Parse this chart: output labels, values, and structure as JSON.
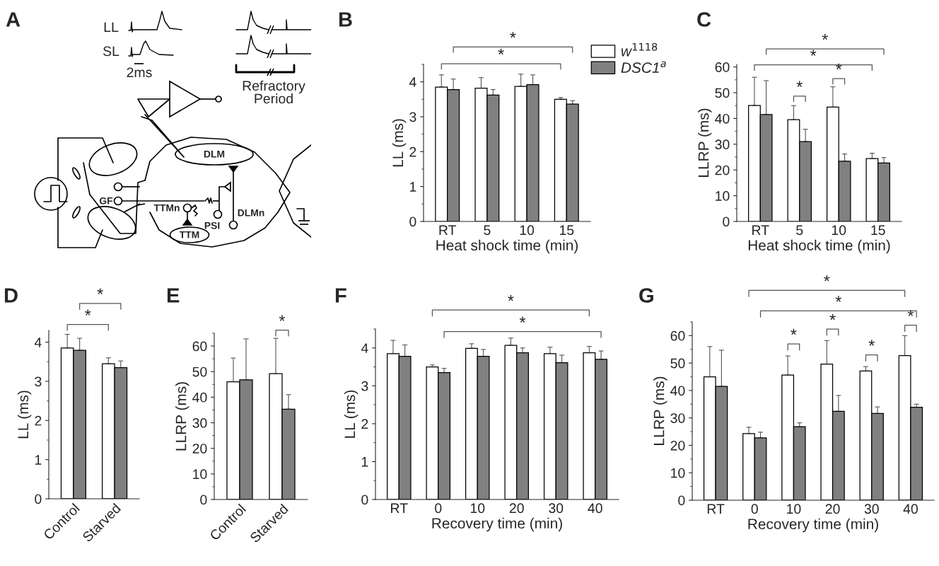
{
  "chart_data": [
    {
      "type": "other",
      "title": "A",
      "annotations": [
        "LL",
        "SL",
        "2ms",
        "Refractory Period",
        "DLM",
        "GF",
        "TTMn",
        "PSI",
        "DLMn",
        "TTM"
      ]
    },
    {
      "type": "bar",
      "title": "B",
      "xlabel": "Heat shock time (min)",
      "ylabel": "LL (ms)",
      "categories": [
        "RT",
        "5",
        "10",
        "15"
      ],
      "ylim": [
        0,
        4.5
      ],
      "yticks": [
        0,
        1,
        2,
        3,
        4
      ],
      "legend": "top right",
      "annotations": [
        "*",
        "*"
      ],
      "series": [
        {
          "name": "w$^{1118}$",
          "color": "#ffffff",
          "values": [
            3.85,
            3.82,
            3.87,
            3.5
          ],
          "errors": [
            [
              3.85,
              4.2
            ],
            [
              3.82,
              4.12
            ],
            [
              3.87,
              4.22
            ],
            [
              3.5,
              3.55
            ]
          ]
        },
        {
          "name": "DSC1$^{a}$",
          "color": "#808080",
          "values": [
            3.78,
            3.62,
            3.92,
            3.36
          ],
          "errors": [
            [
              3.78,
              4.08
            ],
            [
              3.62,
              3.78
            ],
            [
              3.92,
              4.2
            ],
            [
              3.36,
              3.46
            ]
          ]
        }
      ]
    },
    {
      "type": "bar",
      "title": "C",
      "xlabel": "Heat shock time (min)",
      "ylabel": "LLRP (ms)",
      "categories": [
        "RT",
        "5",
        "10",
        "15"
      ],
      "ylim": [
        0,
        61
      ],
      "yticks": [
        0,
        10,
        20,
        30,
        40,
        50,
        60
      ],
      "annotations": [
        "*",
        "*",
        "*",
        "*"
      ],
      "series": [
        {
          "color": "#ffffff",
          "values": [
            45,
            39.5,
            44.4,
            24.4
          ],
          "errors": [
            [
              45,
              56
            ],
            [
              39.5,
              45
            ],
            [
              44.4,
              52.3
            ],
            [
              24.4,
              26.5
            ]
          ]
        },
        {
          "color": "#808080",
          "values": [
            41.5,
            31,
            23.4,
            22.7
          ],
          "errors": [
            [
              41.5,
              54.7
            ],
            [
              31,
              35.8
            ],
            [
              23.4,
              26.2
            ],
            [
              22.7,
              24.8
            ]
          ]
        }
      ]
    },
    {
      "type": "bar",
      "title": "D",
      "ylabel": "LL (ms)",
      "categories": [
        "Control",
        "Starved"
      ],
      "ylim": [
        0,
        4.3
      ],
      "yticks": [
        0,
        1,
        2,
        3,
        4
      ],
      "annotations": [
        "*",
        "*"
      ],
      "series": [
        {
          "color": "#ffffff",
          "values": [
            3.85,
            3.45
          ],
          "errors": [
            [
              3.85,
              4.2
            ],
            [
              3.45,
              3.6
            ]
          ]
        },
        {
          "color": "#808080",
          "values": [
            3.79,
            3.35
          ],
          "errors": [
            [
              3.79,
              4.1
            ],
            [
              3.35,
              3.52
            ]
          ]
        }
      ]
    },
    {
      "type": "bar",
      "title": "E",
      "ylabel": "LLRP (ms)",
      "categories": [
        "Control",
        "Starved"
      ],
      "ylim": [
        0,
        65
      ],
      "yticks": [
        0,
        10,
        20,
        30,
        40,
        50,
        60
      ],
      "annotations": [
        "*"
      ],
      "series": [
        {
          "color": "#ffffff",
          "values": [
            46,
            49.2
          ],
          "errors": [
            [
              46,
              55.3
            ],
            [
              49.2,
              63
            ]
          ]
        },
        {
          "color": "#808080",
          "values": [
            46.8,
            35.3
          ],
          "errors": [
            [
              46.8,
              62.8
            ],
            [
              35.3,
              41
            ]
          ]
        }
      ]
    },
    {
      "type": "bar",
      "title": "F",
      "xlabel": "Recovery time (min)",
      "ylabel": "LL (ms)",
      "categories": [
        "RT",
        "0",
        "10",
        "20",
        "30",
        "40"
      ],
      "ylim": [
        0,
        4.5
      ],
      "yticks": [
        0,
        1,
        2,
        3,
        4
      ],
      "annotations": [
        "*",
        "*"
      ],
      "series": [
        {
          "color": "#ffffff",
          "values": [
            3.85,
            3.5,
            3.99,
            4.07,
            3.85,
            3.87
          ],
          "errors": [
            [
              3.85,
              4.2
            ],
            [
              3.5,
              3.55
            ],
            [
              3.99,
              4.11
            ],
            [
              4.07,
              4.26
            ],
            [
              3.85,
              4.02
            ],
            [
              3.87,
              4.04
            ]
          ]
        },
        {
          "color": "#808080",
          "values": [
            3.78,
            3.35,
            3.78,
            3.87,
            3.61,
            3.7
          ],
          "errors": [
            [
              3.78,
              4.08
            ],
            [
              3.35,
              3.46
            ],
            [
              3.78,
              3.96
            ],
            [
              3.87,
              4.0
            ],
            [
              3.61,
              3.81
            ],
            [
              3.7,
              3.92
            ]
          ]
        }
      ]
    },
    {
      "type": "bar",
      "title": "G",
      "xlabel": "Recovery time (min)",
      "ylabel": "LLRP (ms)",
      "categories": [
        "RT",
        "0",
        "10",
        "20",
        "30",
        "40"
      ],
      "ylim": [
        0,
        65
      ],
      "yticks": [
        0,
        10,
        20,
        30,
        40,
        50,
        60
      ],
      "annotations": [
        "*",
        "*",
        "*",
        "*",
        "*",
        "*"
      ],
      "series": [
        {
          "color": "#ffffff",
          "values": [
            45,
            24.3,
            45.6,
            49.6,
            47.1,
            52.7
          ],
          "errors": [
            [
              45,
              56
            ],
            [
              24.3,
              26.6
            ],
            [
              45.6,
              52.6
            ],
            [
              49.6,
              58.2
            ],
            [
              47.1,
              48.7
            ],
            [
              52.7,
              60
            ]
          ]
        },
        {
          "color": "#808080",
          "values": [
            41.5,
            22.7,
            26.8,
            32.4,
            31.6,
            33.9
          ],
          "errors": [
            [
              41.5,
              54.7
            ],
            [
              22.7,
              24.8
            ],
            [
              26.8,
              28.2
            ],
            [
              32.4,
              38.2
            ],
            [
              31.6,
              34
            ],
            [
              33.9,
              35
            ]
          ]
        }
      ]
    }
  ]
}
